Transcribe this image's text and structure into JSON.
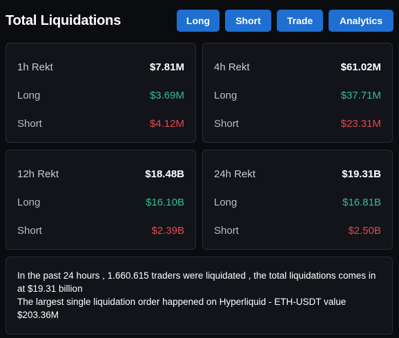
{
  "header": {
    "title": "Total Liquidations",
    "buttons": {
      "long": "Long",
      "short": "Short",
      "trade": "Trade",
      "analytics": "Analytics"
    }
  },
  "cards": [
    {
      "label": "1h Rekt",
      "total": "$7.81M",
      "long_label": "Long",
      "long": "$3.69M",
      "short_label": "Short",
      "short": "$4.12M"
    },
    {
      "label": "4h Rekt",
      "total": "$61.02M",
      "long_label": "Long",
      "long": "$37.71M",
      "short_label": "Short",
      "short": "$23.31M"
    },
    {
      "label": "12h Rekt",
      "total": "$18.48B",
      "long_label": "Long",
      "long": "$16.10B",
      "short_label": "Short",
      "short": "$2.39B"
    },
    {
      "label": "24h Rekt",
      "total": "$19.31B",
      "long_label": "Long",
      "long": "$16.81B",
      "short_label": "Short",
      "short": "$2.50B"
    }
  ],
  "summary": {
    "line1": "In the past 24 hours , 1.660.615 traders were liquidated , the total liquidations comes in at $19.31 billion",
    "line2": "The largest single liquidation order happened on Hyperliquid - ETH-USDT value $203.36M"
  },
  "colors": {
    "accent": "#1f6fd1",
    "positive": "#2fbf8f",
    "negative": "#e5484d",
    "background": "#0b0c10",
    "card": "#12141a"
  }
}
